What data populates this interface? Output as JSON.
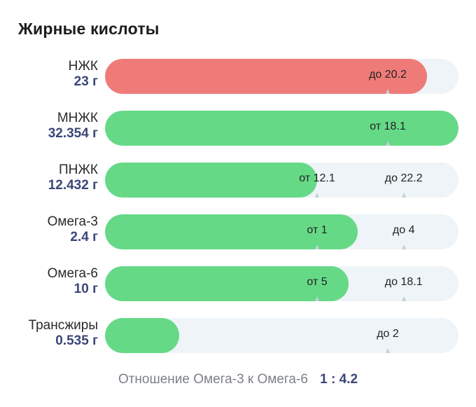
{
  "title": "Жирные кислоты",
  "colors": {
    "fill_ok": "#66d987",
    "fill_over": "#ef7b78",
    "track": "#eef4f7",
    "amount_text": "#3a4677"
  },
  "rows": [
    {
      "name": "НЖК",
      "amount": "23 г",
      "fill_color": "red",
      "fill_percent": 91,
      "markers": [
        {
          "text": "до 20.2",
          "position_percent": 80
        }
      ]
    },
    {
      "name": "МНЖК",
      "amount": "32.354 г",
      "fill_color": "green",
      "fill_percent": 100,
      "markers": [
        {
          "text": "от 18.1",
          "position_percent": 80
        }
      ]
    },
    {
      "name": "ПНЖК",
      "amount": "12.432 г",
      "fill_color": "green",
      "fill_percent": 60,
      "markers": [
        {
          "text": "от 12.1",
          "position_percent": 60
        },
        {
          "text": "до 22.2",
          "position_percent": 84.5
        }
      ]
    },
    {
      "name": "Омега-3",
      "amount": "2.4 г",
      "fill_color": "green",
      "fill_percent": 71.5,
      "markers": [
        {
          "text": "от 1",
          "position_percent": 60
        },
        {
          "text": "до 4",
          "position_percent": 84.5
        }
      ]
    },
    {
      "name": "Омега-6",
      "amount": "10 г",
      "fill_color": "green",
      "fill_percent": 69,
      "markers": [
        {
          "text": "от 5",
          "position_percent": 60
        },
        {
          "text": "до 18.1",
          "position_percent": 84.5
        }
      ]
    },
    {
      "name": "Трансжиры",
      "amount": "0.535 г",
      "fill_color": "green",
      "fill_percent": 21,
      "markers": [
        {
          "text": "до 2",
          "position_percent": 80
        }
      ]
    }
  ],
  "ratio": {
    "label": "Отношение Омега-3 к Омега-6",
    "value": "1 : 4.2"
  }
}
